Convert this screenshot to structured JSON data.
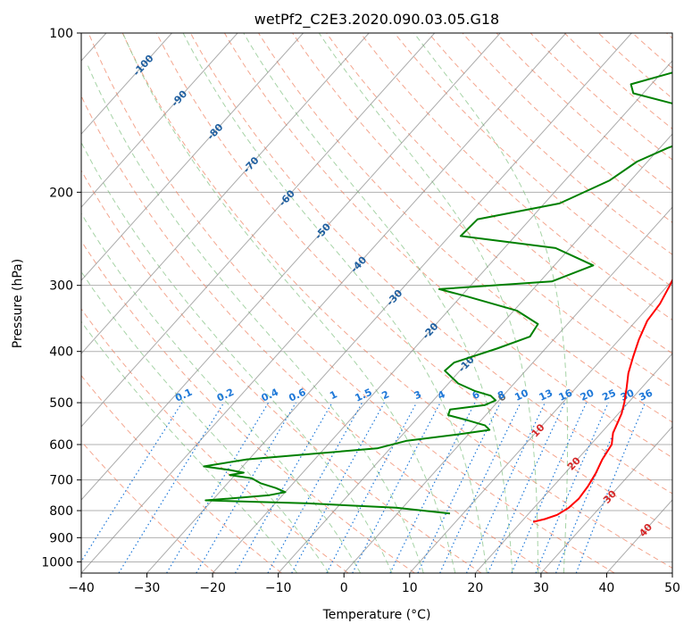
{
  "chart_data": {
    "type": "line",
    "title": "wetPf2_C2E3.2020.090.03.05.G18",
    "xlabel": "Temperature (°C)",
    "ylabel": "Pressure (hPa)",
    "xlim": [
      -40,
      50
    ],
    "ylim": [
      1050,
      100
    ],
    "y_scale": "log",
    "grid": true,
    "x_ticks": [
      "−40",
      "−30",
      "−20",
      "−10",
      "0",
      "10",
      "20",
      "30",
      "40",
      "50"
    ],
    "y_ticks": [
      "100",
      "200",
      "300",
      "400",
      "500",
      "600",
      "700",
      "800",
      "900",
      "1000"
    ],
    "colors": {
      "temperature": "#ff0000",
      "dewpoint": "#008000",
      "isotherm": "#888888",
      "dry_adiabat": "#f08060",
      "moist_adiabat": "#80c080",
      "mixing_ratio": "#1e78d8"
    },
    "series": [
      {
        "color": "#ff0000",
        "points": [
          [
            6.0,
            100
          ],
          [
            5.8,
            110
          ],
          [
            6.7,
            125
          ],
          [
            5.5,
            140
          ],
          [
            4.2,
            155
          ],
          [
            3.5,
            170
          ],
          [
            3.7,
            185
          ],
          [
            4.5,
            200
          ],
          [
            5.9,
            220
          ],
          [
            7.6,
            240
          ],
          [
            8.8,
            262
          ],
          [
            9.3,
            280
          ],
          [
            10.3,
            300
          ],
          [
            11.3,
            325
          ],
          [
            11.7,
            350
          ],
          [
            13.0,
            380
          ],
          [
            14.5,
            410
          ],
          [
            16.0,
            440
          ],
          [
            17.8,
            470
          ],
          [
            19.4,
            500
          ],
          [
            20.5,
            525
          ],
          [
            21.1,
            545
          ],
          [
            21.8,
            570
          ],
          [
            23.2,
            600
          ],
          [
            23.8,
            640
          ],
          [
            24.7,
            680
          ],
          [
            25.3,
            720
          ],
          [
            25.6,
            760
          ],
          [
            25.3,
            790
          ],
          [
            24.5,
            815
          ],
          [
            23.2,
            830
          ],
          [
            21.8,
            840
          ]
        ]
      },
      {
        "color": "#008000",
        "points": [
          [
            -1.7,
            100
          ],
          [
            -11.2,
            110
          ],
          [
            -23.1,
            125
          ],
          [
            -21.5,
            130
          ],
          [
            -9.2,
            140
          ],
          [
            -5.0,
            155
          ],
          [
            -8.8,
            165
          ],
          [
            -11.6,
            175
          ],
          [
            -13.2,
            190
          ],
          [
            -17.7,
            210
          ],
          [
            -28.0,
            225
          ],
          [
            -28.3,
            242
          ],
          [
            -12.2,
            255
          ],
          [
            -4.1,
            275
          ],
          [
            -8.2,
            295
          ],
          [
            -24.3,
            305
          ],
          [
            -19.0,
            315
          ],
          [
            -9.5,
            335
          ],
          [
            -4.5,
            355
          ],
          [
            -4.0,
            375
          ],
          [
            -7.4,
            395
          ],
          [
            -12.0,
            420
          ],
          [
            -12.3,
            435
          ],
          [
            -8.5,
            460
          ],
          [
            -5.0,
            475
          ],
          [
            -1.9,
            485
          ],
          [
            -0.5,
            495
          ],
          [
            -1.5,
            505
          ],
          [
            -6.2,
            515
          ],
          [
            -5.7,
            528
          ],
          [
            -2.0,
            540
          ],
          [
            1.3,
            552
          ],
          [
            2.6,
            563
          ],
          [
            -2.0,
            575
          ],
          [
            -8.5,
            590
          ],
          [
            -12.0,
            610
          ],
          [
            -30.3,
            640
          ],
          [
            -35.9,
            660
          ],
          [
            -31.6,
            670
          ],
          [
            -29.0,
            678
          ],
          [
            -30.8,
            685
          ],
          [
            -27.0,
            695
          ],
          [
            -25.0,
            710
          ],
          [
            -22.0,
            725
          ],
          [
            -20.0,
            738
          ],
          [
            -22.0,
            748
          ],
          [
            -28.1,
            760
          ],
          [
            -31.0,
            765
          ],
          [
            -15.0,
            775
          ],
          [
            -1.0,
            790
          ],
          [
            8.0,
            810
          ]
        ]
      }
    ],
    "isotherm_labels": [
      "-100",
      "-90",
      "-80",
      "-70",
      "-60",
      "-50",
      "-40",
      "-30",
      "-20",
      "-10",
      "0",
      "10",
      "20",
      "30",
      "40"
    ],
    "mixing_ratio_labels": [
      "0.1",
      "0.2",
      "0.4",
      "0.6",
      "1",
      "1.5",
      "2",
      "3",
      "4",
      "6",
      "8",
      "10",
      "13",
      "16",
      "20",
      "25",
      "30",
      "36"
    ],
    "mixing_ratio_values": [
      0.1,
      0.2,
      0.4,
      0.6,
      1,
      1.5,
      2,
      3,
      4,
      6,
      8,
      10,
      13,
      16,
      20,
      25,
      30,
      36
    ]
  }
}
